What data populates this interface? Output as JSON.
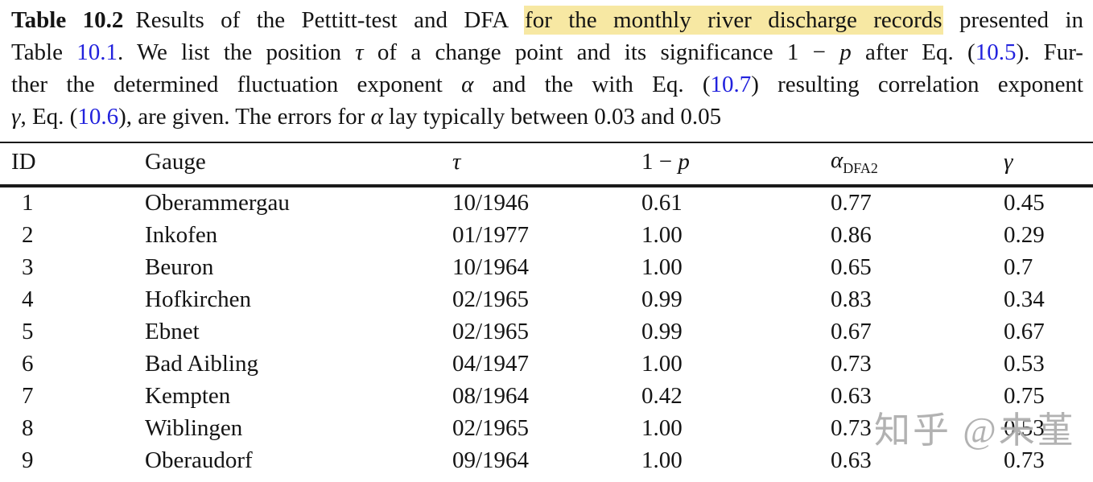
{
  "caption": {
    "label": "Table 10.2",
    "line1": {
      "a": "Results of the Pettitt-test and DFA ",
      "highlight": "for the monthly river discharge records",
      "b": " presented in"
    },
    "line2": {
      "a": "Table ",
      "link1": "10.1",
      "b": ". We list the position ",
      "tau": "τ",
      "c": " of a change point and its significance 1 − ",
      "p": "p",
      "d": " after Eq. (",
      "link2": "10.5",
      "e": "). Fur-"
    },
    "line3": {
      "a": "ther the determined fluctuation exponent ",
      "alpha": "α",
      "b": " and the with Eq. (",
      "link": "10.7",
      "c": ") resulting correlation exponent"
    },
    "line4": {
      "gamma": "γ",
      "a": ", Eq. (",
      "link": "10.6",
      "b": "), are given. The errors for ",
      "alpha": "α",
      "c": " lay typically between 0.03 and 0.05"
    }
  },
  "table": {
    "header": {
      "id": "ID",
      "gauge": "Gauge",
      "tau": "τ",
      "one_minus_p_prefix": "1 − ",
      "p": "p",
      "alpha": "α",
      "alpha_sub": "DFA2",
      "gamma": "γ"
    },
    "rows": [
      [
        "1",
        "Oberammergau",
        "10/1946",
        "0.61",
        "0.77",
        "0.45"
      ],
      [
        "2",
        "Inkofen",
        "01/1977",
        "1.00",
        "0.86",
        "0.29"
      ],
      [
        "3",
        "Beuron",
        "10/1964",
        "1.00",
        "0.65",
        "0.7"
      ],
      [
        "4",
        "Hofkirchen",
        "02/1965",
        "0.99",
        "0.83",
        "0.34"
      ],
      [
        "5",
        "Ebnet",
        "02/1965",
        "0.99",
        "0.67",
        "0.67"
      ],
      [
        "6",
        "Bad Aibling",
        "04/1947",
        "1.00",
        "0.73",
        "0.53"
      ],
      [
        "7",
        "Kempten",
        "08/1964",
        "0.42",
        "0.63",
        "0.75"
      ],
      [
        "8",
        "Wiblingen",
        "02/1965",
        "1.00",
        "0.73",
        "0.53"
      ],
      [
        "9",
        "Oberaudorf",
        "09/1964",
        "1.00",
        "0.63",
        "0.73"
      ]
    ]
  },
  "watermark": "知乎 @未堇",
  "colors": {
    "highlight": "#f7e8a3",
    "link": "#2222dd",
    "rule": "#1a1a1a",
    "watermark": "rgba(165,165,165,0.85)"
  }
}
